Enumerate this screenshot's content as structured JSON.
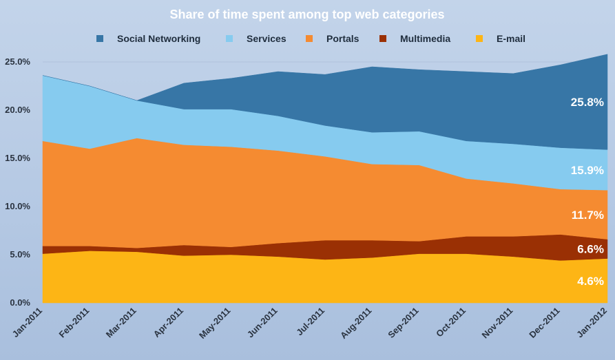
{
  "chart_data": {
    "type": "area",
    "stacked": true,
    "title": "Share of time spent among top web categories",
    "xlabel": "",
    "ylabel": "",
    "ylim": [
      0,
      25
    ],
    "y_ticks": [
      "0.0%",
      "5.0%",
      "10.0%",
      "15.0%",
      "20.0%",
      "25.0%"
    ],
    "y_tick_values": [
      0,
      5,
      10,
      15,
      20,
      25
    ],
    "legend_position": "top",
    "categories": [
      "Jan-2011",
      "Feb-2011",
      "Mar-2011",
      "Apr-2011",
      "May-2011",
      "Jun-2011",
      "Jul-2011",
      "Aug-2011",
      "Sep-2011",
      "Oct-2011",
      "Nov-2011",
      "Dec-2011",
      "Jan-2012"
    ],
    "series": [
      {
        "name": "E-mail",
        "color": "#fdb515",
        "label": "4.6%",
        "values": [
          5.1,
          5.4,
          5.3,
          4.9,
          5.0,
          4.8,
          4.5,
          4.7,
          5.1,
          5.1,
          4.8,
          4.4,
          4.6
        ]
      },
      {
        "name": "Multimedia",
        "color": "#9a3004",
        "label": "6.6%",
        "values": [
          0.8,
          0.5,
          0.4,
          1.1,
          0.8,
          1.4,
          2.0,
          1.8,
          1.3,
          1.8,
          2.1,
          2.7,
          2.0
        ]
      },
      {
        "name": "Portals",
        "color": "#f58b31",
        "label": "11.7%",
        "values": [
          10.9,
          10.1,
          11.4,
          10.4,
          10.4,
          9.6,
          8.7,
          7.9,
          7.9,
          6.0,
          5.5,
          4.7,
          5.1
        ]
      },
      {
        "name": "Services",
        "color": "#86cbef",
        "label": "15.9%",
        "values": [
          6.8,
          6.5,
          3.9,
          3.7,
          3.9,
          3.6,
          3.2,
          3.3,
          3.5,
          3.9,
          4.1,
          4.3,
          4.2
        ]
      },
      {
        "name": "Social Networking",
        "color": "#3776a6",
        "label": "25.8%",
        "values": [
          0,
          0,
          0,
          2.7,
          3.2,
          4.6,
          5.3,
          6.8,
          6.4,
          7.2,
          7.3,
          8.6,
          9.9
        ]
      }
    ],
    "legend_order": [
      "Social Networking",
      "Services",
      "Portals",
      "Multimedia",
      "E-mail"
    ]
  }
}
